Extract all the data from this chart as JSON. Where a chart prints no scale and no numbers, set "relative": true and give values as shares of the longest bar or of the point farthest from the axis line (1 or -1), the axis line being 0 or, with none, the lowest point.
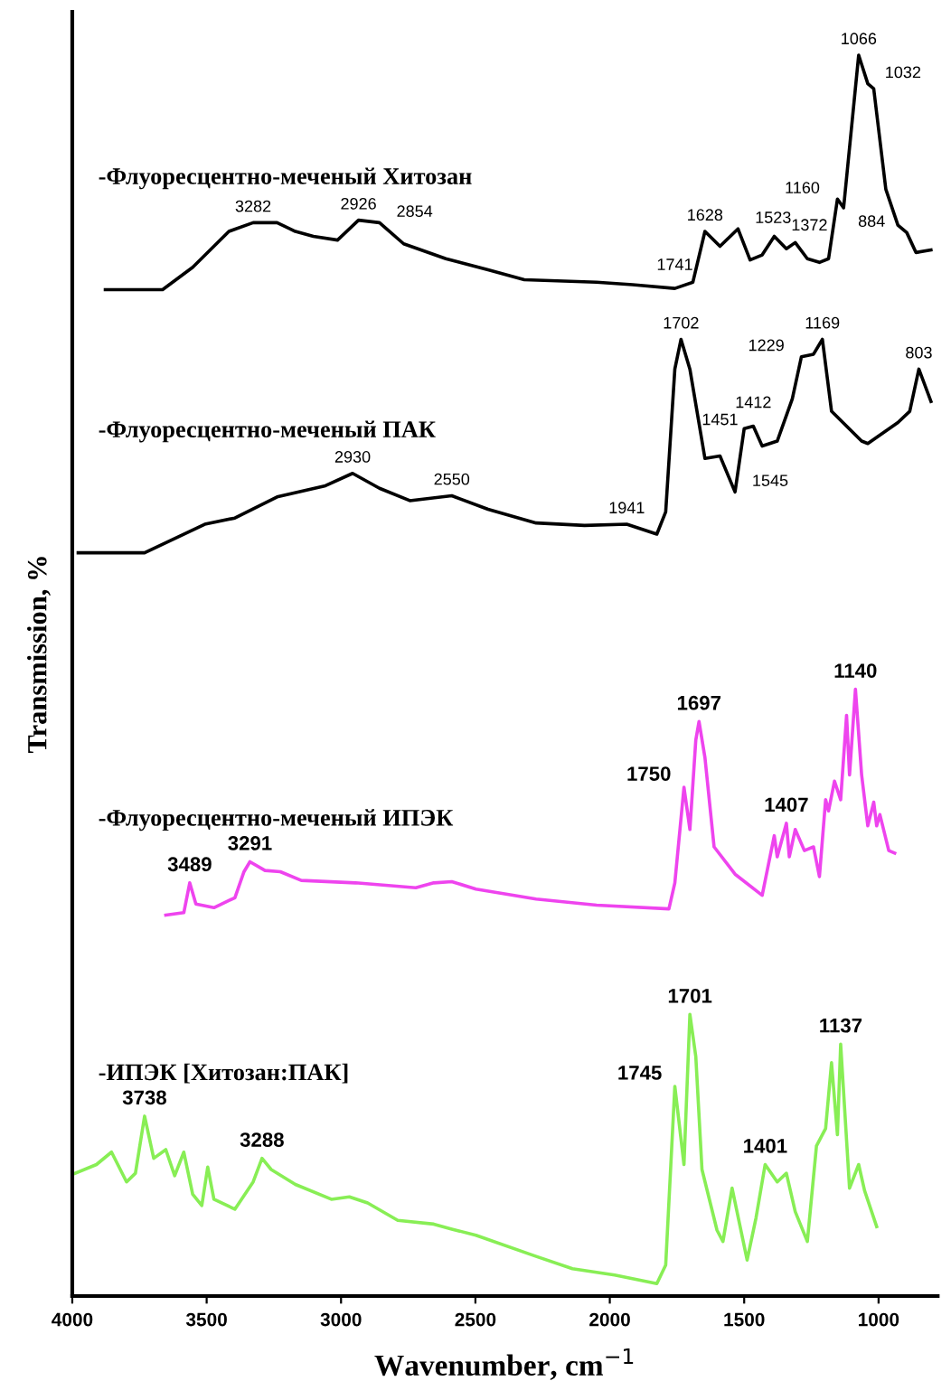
{
  "chart_data": {
    "type": "line",
    "relative": true,
    "xlabel": "Wavenumber, cm$^{−1}$",
    "ylabel": "Transmission, %",
    "xlim": [
      4000,
      780
    ],
    "xticks": [
      4000,
      3500,
      3000,
      2500,
      2000,
      1500,
      1000
    ],
    "tick_labels": "x",
    "marker": "none",
    "line_style": "solid",
    "series": [
      {
        "name": "-Флуоресцентно-меченый Хитозан",
        "color": "#000000",
        "x": [
          3877,
          3664,
          3552,
          3417,
          3327,
          3238,
          3170,
          3103,
          3013,
          2935,
          2857,
          2767,
          2610,
          2453,
          2318,
          2049,
          1915,
          1758,
          1691,
          1646,
          1590,
          1523,
          1478,
          1433,
          1388,
          1343,
          1310,
          1265,
          1220,
          1186,
          1153,
          1130,
          1074,
          1040,
          1018,
          973,
          928,
          895,
          861,
          805
        ],
        "values": [
          0.811,
          0.811,
          0.829,
          0.858,
          0.865,
          0.865,
          0.858,
          0.854,
          0.851,
          0.867,
          0.865,
          0.848,
          0.836,
          0.827,
          0.819,
          0.817,
          0.815,
          0.812,
          0.817,
          0.858,
          0.846,
          0.86,
          0.835,
          0.839,
          0.854,
          0.844,
          0.849,
          0.836,
          0.833,
          0.836,
          0.884,
          0.877,
          1.0,
          0.977,
          0.973,
          0.892,
          0.863,
          0.857,
          0.841,
          0.843
        ]
      },
      {
        "name": "-Флуоресцентно-меченый ПАК",
        "color": "#000000",
        "x": [
          3978,
          3731,
          3507,
          3395,
          3238,
          3058,
          2957,
          2857,
          2744,
          2588,
          2453,
          2274,
          2094,
          1937,
          1825,
          1792,
          1758,
          1735,
          1702,
          1646,
          1590,
          1534,
          1500,
          1466,
          1433,
          1377,
          1321,
          1287,
          1242,
          1209,
          1175,
          1063,
          1040,
          928,
          884,
          850,
          805
        ],
        "values": [
          0.599,
          0.599,
          0.622,
          0.627,
          0.644,
          0.653,
          0.663,
          0.651,
          0.641,
          0.645,
          0.634,
          0.623,
          0.621,
          0.622,
          0.614,
          0.632,
          0.747,
          0.771,
          0.747,
          0.675,
          0.677,
          0.648,
          0.699,
          0.701,
          0.685,
          0.689,
          0.723,
          0.757,
          0.759,
          0.771,
          0.713,
          0.689,
          0.687,
          0.704,
          0.713,
          0.747,
          0.721
        ]
      },
      {
        "name": "-Флуоресцентно-меченый ИПЭК",
        "color": "#ee44ee",
        "x": [
          3652,
          3585,
          3563,
          3540,
          3473,
          3395,
          3361,
          3339,
          3283,
          3226,
          3148,
          2946,
          2722,
          2655,
          2588,
          2498,
          2274,
          2049,
          1780,
          1758,
          1724,
          1702,
          1680,
          1668,
          1646,
          1612,
          1534,
          1433,
          1388,
          1377,
          1343,
          1332,
          1310,
          1276,
          1242,
          1220,
          1197,
          1186,
          1164,
          1141,
          1119,
          1108,
          1086,
          1063,
          1040,
          1018,
          1007,
          995,
          962,
          940
        ],
        "values": [
          0.307,
          0.309,
          0.333,
          0.316,
          0.313,
          0.321,
          0.342,
          0.35,
          0.343,
          0.342,
          0.335,
          0.333,
          0.329,
          0.333,
          0.334,
          0.328,
          0.32,
          0.315,
          0.312,
          0.333,
          0.41,
          0.376,
          0.448,
          0.463,
          0.434,
          0.362,
          0.34,
          0.323,
          0.371,
          0.354,
          0.381,
          0.354,
          0.376,
          0.359,
          0.362,
          0.338,
          0.4,
          0.391,
          0.415,
          0.4,
          0.468,
          0.42,
          0.489,
          0.42,
          0.379,
          0.398,
          0.379,
          0.388,
          0.359,
          0.357
        ]
      },
      {
        "name": "-ИПЭК [Хитозан:ПАК]",
        "color": "#88ee55",
        "x": [
          3989,
          3910,
          3854,
          3798,
          3765,
          3731,
          3697,
          3652,
          3619,
          3585,
          3552,
          3518,
          3496,
          3473,
          3395,
          3327,
          3294,
          3260,
          3170,
          3036,
          2969,
          2901,
          2789,
          2655,
          2588,
          2498,
          2274,
          2139,
          1982,
          1825,
          1792,
          1758,
          1724,
          1702,
          1680,
          1657,
          1601,
          1579,
          1545,
          1489,
          1456,
          1422,
          1377,
          1343,
          1310,
          1265,
          1231,
          1197,
          1175,
          1153,
          1141,
          1108,
          1074,
          1052,
          1007
        ],
        "values": [
          0.099,
          0.106,
          0.116,
          0.092,
          0.099,
          0.145,
          0.111,
          0.118,
          0.097,
          0.116,
          0.082,
          0.073,
          0.104,
          0.078,
          0.07,
          0.092,
          0.111,
          0.102,
          0.09,
          0.078,
          0.08,
          0.075,
          0.061,
          0.058,
          0.054,
          0.049,
          0.032,
          0.022,
          0.017,
          0.01,
          0.025,
          0.169,
          0.106,
          0.227,
          0.193,
          0.102,
          0.053,
          0.044,
          0.087,
          0.029,
          0.063,
          0.106,
          0.092,
          0.099,
          0.068,
          0.044,
          0.121,
          0.135,
          0.188,
          0.13,
          0.203,
          0.087,
          0.106,
          0.085,
          0.056
        ]
      }
    ],
    "annotations": [
      {
        "text": "3282",
        "x": 3327,
        "y": 0.865
      },
      {
        "text": "2926",
        "x": 2935,
        "y": 0.867
      },
      {
        "text": "2854",
        "x": 2857,
        "y": 0.865
      },
      {
        "text": "1741",
        "x": 1758,
        "y": 0.812
      },
      {
        "text": "1628",
        "x": 1646,
        "y": 0.858
      },
      {
        "text": "1523",
        "x": 1523,
        "y": 0.86
      },
      {
        "text": "1372",
        "x": 1388,
        "y": 0.854
      },
      {
        "text": "1160",
        "x": 1153,
        "y": 0.884
      },
      {
        "text": "1066",
        "x": 1074,
        "y": 1.0
      },
      {
        "text": "1032",
        "x": 1040,
        "y": 0.977
      },
      {
        "text": "884",
        "x": 895,
        "y": 0.857
      },
      {
        "text": "2930",
        "x": 2957,
        "y": 0.663
      },
      {
        "text": "2550",
        "x": 2588,
        "y": 0.645
      },
      {
        "text": "1941",
        "x": 1937,
        "y": 0.622
      },
      {
        "text": "1702",
        "x": 1735,
        "y": 0.771
      },
      {
        "text": "1451",
        "x": 1590,
        "y": 0.677
      },
      {
        "text": "1412",
        "x": 1466,
        "y": 0.701
      },
      {
        "text": "1545",
        "x": 1534,
        "y": 0.648
      },
      {
        "text": "1229",
        "x": 1287,
        "y": 0.757
      },
      {
        "text": "1169",
        "x": 1209,
        "y": 0.771
      },
      {
        "text": "803",
        "x": 850,
        "y": 0.747
      },
      {
        "text": "3489",
        "x": 3563,
        "y": 0.333
      },
      {
        "text": "3291",
        "x": 3339,
        "y": 0.35
      },
      {
        "text": "1750",
        "x": 1724,
        "y": 0.41
      },
      {
        "text": "1697",
        "x": 1668,
        "y": 0.463
      },
      {
        "text": "1407",
        "x": 1343,
        "y": 0.381
      },
      {
        "text": "1140",
        "x": 1086,
        "y": 0.489
      },
      {
        "text": "3738",
        "x": 3731,
        "y": 0.145
      },
      {
        "text": "3288",
        "x": 3294,
        "y": 0.111
      },
      {
        "text": "1745",
        "x": 1758,
        "y": 0.169
      },
      {
        "text": "1701",
        "x": 1702,
        "y": 0.227
      },
      {
        "text": "1401",
        "x": 1422,
        "y": 0.106
      },
      {
        "text": "1137",
        "x": 1141,
        "y": 0.203
      }
    ]
  }
}
